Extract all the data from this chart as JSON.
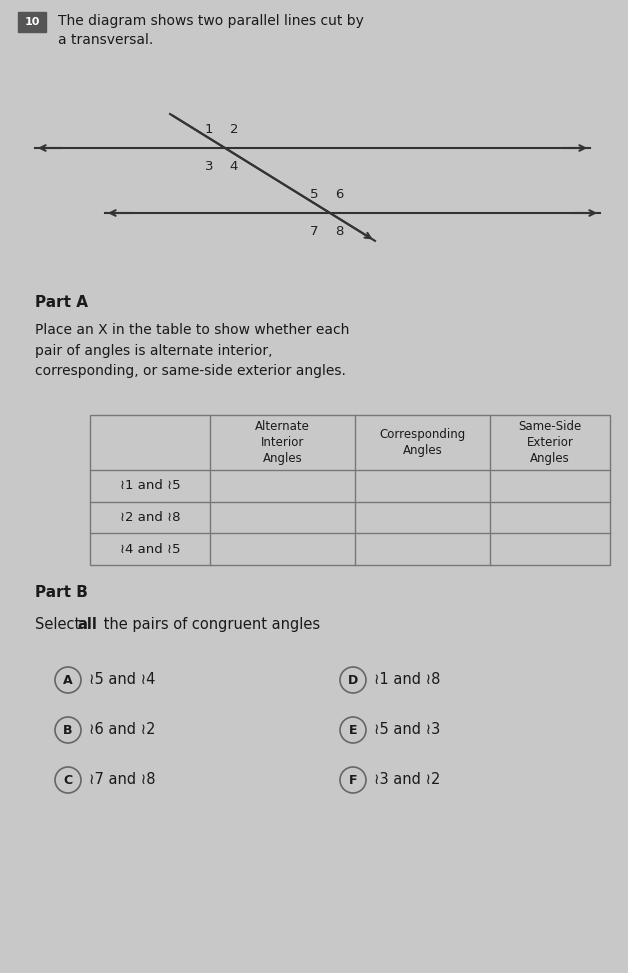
{
  "bg_color": "#c8c8c8",
  "title_number": "10",
  "title_text": "The diagram shows two parallel lines cut by\na transversal.",
  "part_a_label": "Part A",
  "part_a_text": "Place an X in the table to show whether each\npair of angles is alternate interior,\ncorresponding, or same-side exterior angles.",
  "part_b_label": "Part B",
  "part_b_text_before_bold": "Select ",
  "part_b_text_bold": "all",
  "part_b_text_after_bold": " the pairs of congruent angles",
  "table_headers": [
    "Alternate\nInterior\nAngles",
    "Corresponding\nAngles",
    "Same-Side\nExterior\nAngles"
  ],
  "table_rows": [
    "≀1 and ≀5",
    "≀2 and ≀8",
    "≀4 and ≀5"
  ],
  "part_b_options": [
    [
      "A",
      "≀5 and ≀4",
      "D",
      "≀1 and ≀8"
    ],
    [
      "B",
      "≀6 and ≀2",
      "E",
      "≀5 and ≀3"
    ],
    [
      "C",
      "≀7 and ≀8",
      "F",
      "≀3 and ≀2"
    ]
  ],
  "text_color": "#1a1a1a",
  "table_line_color": "#777777",
  "angle_label_color": "#222222"
}
